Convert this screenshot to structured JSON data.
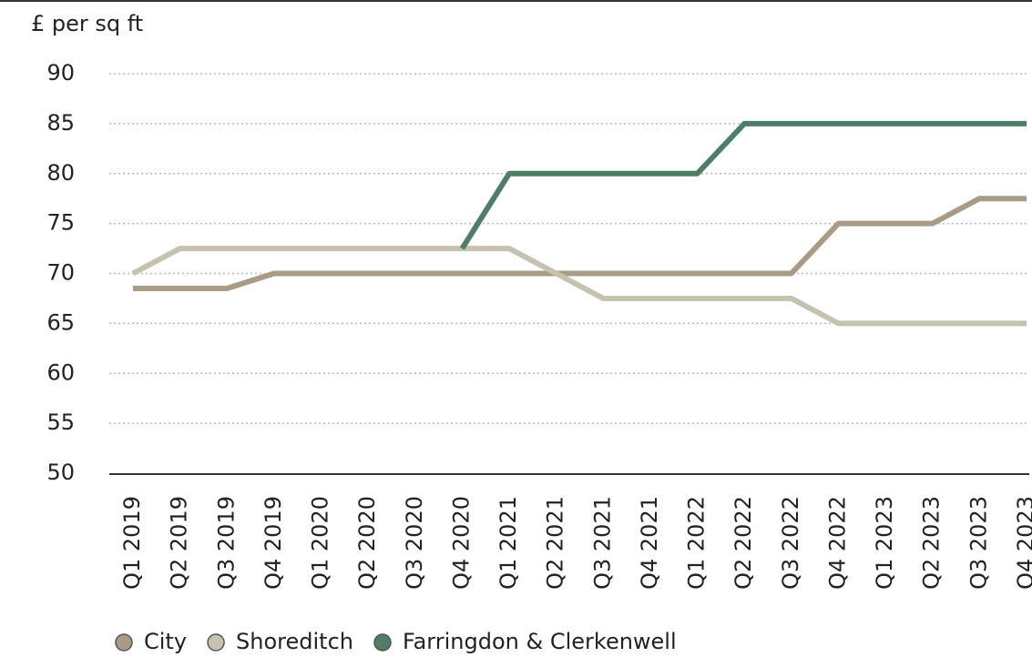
{
  "chart_data": {
    "type": "line",
    "y_label": "£ per sq ft",
    "categories": [
      "Q1 2019",
      "Q2 2019",
      "Q3 2019",
      "Q4 2019",
      "Q1 2020",
      "Q2 2020",
      "Q3 2020",
      "Q4 2020",
      "Q1 2021",
      "Q2 2021",
      "Q3 2021",
      "Q4 2021",
      "Q1 2022",
      "Q2 2022",
      "Q3 2022",
      "Q4 2022",
      "Q1 2023",
      "Q2 2023",
      "Q3 2023",
      "Q4 2023"
    ],
    "series": [
      {
        "name": "City",
        "color": "#a89c86",
        "values": [
          68.5,
          68.5,
          68.5,
          70,
          70,
          70,
          70,
          70,
          70,
          70,
          70,
          70,
          70,
          70,
          70,
          75,
          75,
          75,
          77.5,
          77.5
        ]
      },
      {
        "name": "Shoreditch",
        "color": "#c6c2b0",
        "values": [
          70,
          72.5,
          72.5,
          72.5,
          72.5,
          72.5,
          72.5,
          72.5,
          72.5,
          70,
          67.5,
          67.5,
          67.5,
          67.5,
          67.5,
          65,
          65,
          65,
          65,
          65
        ]
      },
      {
        "name": "Farringdon & Clerkenwell",
        "color": "#4e7d68",
        "values": [
          null,
          null,
          null,
          null,
          null,
          null,
          null,
          72.5,
          80,
          80,
          80,
          80,
          80,
          85,
          85,
          85,
          85,
          85,
          85,
          85
        ]
      }
    ],
    "ylim": [
      50,
      90
    ],
    "yticks": [
      50,
      55,
      60,
      65,
      70,
      75,
      80,
      85,
      90
    ],
    "grid": true
  }
}
